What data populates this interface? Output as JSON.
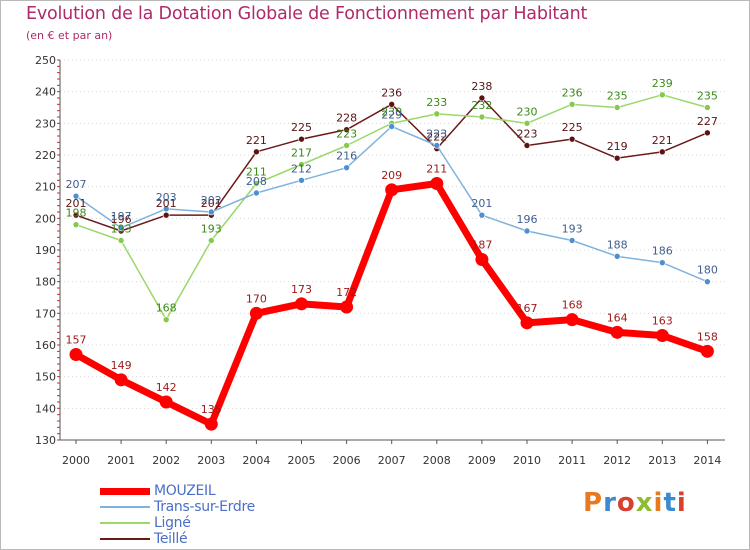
{
  "header": {
    "title": "Evolution de la Dotation Globale de Fonctionnement par Habitant",
    "subtitle": "(en € et par an)"
  },
  "brand": {
    "text": "Proxiti",
    "colors": [
      "#e8791f",
      "#3a8ad0",
      "#d6402e",
      "#8cbe2e",
      "#e8791f",
      "#3a8ad0",
      "#d6402e"
    ]
  },
  "chart_data": {
    "type": "line",
    "title": "Evolution de la Dotation Globale de Fonctionnement par Habitant",
    "subtitle": "(en € et par an)",
    "xlabel": "",
    "ylabel": "",
    "ylim": [
      130,
      250
    ],
    "yticks": [
      130,
      140,
      150,
      160,
      170,
      180,
      190,
      200,
      210,
      220,
      230,
      240,
      250
    ],
    "grid": "horizontal dotted",
    "legend_position": "bottom-left",
    "categories": [
      "2000",
      "2001",
      "2002",
      "2003",
      "2004",
      "2005",
      "2006",
      "2007",
      "2008",
      "2009",
      "2010",
      "2011",
      "2012",
      "2013",
      "2014"
    ],
    "series": [
      {
        "name": "Teillé",
        "color": "#6b1a1a",
        "marker": "#5a1414",
        "label_color": "#5a1414",
        "width": 1.5,
        "radius": 3,
        "values": [
          201,
          196,
          201,
          201,
          221,
          225,
          228,
          236,
          222,
          238,
          223,
          225,
          219,
          221,
          227
        ]
      },
      {
        "name": "Ligné",
        "color": "#9ad86a",
        "marker": "#86c94d",
        "label_color": "#3c8a1c",
        "width": 1.5,
        "radius": 3,
        "values": [
          198,
          193,
          168,
          193,
          211,
          217,
          223,
          230,
          233,
          232,
          230,
          236,
          235,
          239,
          235
        ]
      },
      {
        "name": "Trans-sur-Erdre",
        "color": "#7fb3dd",
        "marker": "#4f8fcf",
        "label_color": "#3f5f8f",
        "width": 1.5,
        "radius": 3,
        "values": [
          207,
          197,
          203,
          202,
          208,
          212,
          216,
          229,
          223,
          201,
          196,
          193,
          188,
          186,
          180
        ]
      },
      {
        "name": "MOUZEIL",
        "color": "#ff0000",
        "marker": "#ff0000",
        "label_color": "#9a1a1a",
        "width": 7,
        "radius": 6.5,
        "values": [
          157,
          149,
          142,
          135,
          170,
          173,
          172,
          209,
          211,
          187,
          167,
          168,
          164,
          163,
          158
        ]
      }
    ]
  },
  "legend": [
    {
      "name": "MOUZEIL",
      "color": "#ff0000",
      "text_color": "#4a6fc8",
      "thickness": 7
    },
    {
      "name": "Trans-sur-Erdre",
      "color": "#7fb3dd",
      "text_color": "#4a6fc8",
      "thickness": 2
    },
    {
      "name": "Ligné",
      "color": "#9ad86a",
      "text_color": "#4a6fc8",
      "thickness": 2
    },
    {
      "name": "Teillé",
      "color": "#6b1a1a",
      "text_color": "#4a6fc8",
      "thickness": 2
    }
  ]
}
